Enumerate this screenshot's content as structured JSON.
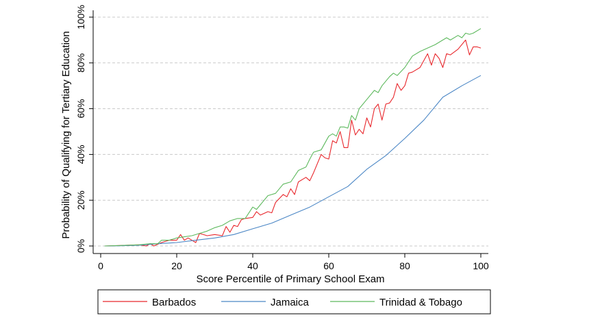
{
  "chart_data": {
    "type": "line",
    "title": "",
    "xlabel": "Score Percentile of Primary School Exam",
    "ylabel": "Probability of Qualifying for Tertiary Education",
    "xlim": [
      0,
      100
    ],
    "ylim": [
      0,
      100
    ],
    "x_ticks": [
      0,
      20,
      40,
      60,
      80,
      100
    ],
    "y_ticks": [
      0,
      20,
      40,
      60,
      80,
      100
    ],
    "y_tick_labels": [
      "0%",
      "20%",
      "40%",
      "60%",
      "80%",
      "100%"
    ],
    "grid": "horizontal dashed",
    "legend": "bottom",
    "series": [
      {
        "name": "Barbados",
        "color": "#e8262b",
        "x": [
          1,
          5,
          10,
          12,
          13,
          14,
          16,
          18,
          20,
          21,
          22,
          23,
          24,
          25,
          26,
          28,
          30,
          32,
          33,
          34,
          35,
          36,
          37,
          38,
          40,
          41,
          42,
          44,
          45,
          46,
          48,
          49,
          50,
          51,
          52,
          54,
          55,
          56,
          58,
          59,
          60,
          61,
          62,
          63,
          64,
          65,
          66,
          67,
          68,
          69,
          70,
          71,
          72,
          73,
          74,
          75,
          76,
          77,
          78,
          79,
          80,
          81,
          82,
          84,
          86,
          87,
          88,
          89,
          90,
          91,
          92,
          94,
          96,
          97,
          98,
          99,
          100
        ],
        "y": [
          0,
          0.2,
          0.5,
          0,
          1,
          0,
          1.5,
          2.5,
          2.5,
          5,
          2.5,
          3.5,
          2.5,
          1.5,
          5.5,
          4.5,
          5,
          4.5,
          8.5,
          6,
          9,
          8.5,
          11.5,
          12,
          12.5,
          15,
          13.5,
          15,
          14.5,
          19,
          22.5,
          21.5,
          25,
          22.5,
          28,
          30,
          28.5,
          32,
          40,
          38.5,
          38,
          46,
          45,
          50,
          43,
          43,
          55,
          48.5,
          51,
          49,
          56,
          52,
          60,
          62,
          55,
          62,
          62.5,
          65,
          71,
          68,
          70,
          75.5,
          76,
          78,
          84,
          79,
          84,
          82,
          78,
          84,
          83.5,
          86,
          90,
          83.5,
          87,
          87,
          86.5
        ]
      },
      {
        "name": "Jamaica",
        "color": "#4a86c5",
        "x": [
          1,
          5,
          10,
          15,
          20,
          25,
          30,
          35,
          40,
          45,
          50,
          55,
          60,
          65,
          70,
          75,
          80,
          85,
          90,
          95,
          100
        ],
        "y": [
          0,
          0.1,
          0.3,
          1,
          1.5,
          2.5,
          3.5,
          5,
          7.5,
          10,
          13.5,
          17,
          21.5,
          26,
          33.5,
          39.5,
          47,
          55,
          65,
          70,
          74.5
        ]
      },
      {
        "name": "Trinidad & Tobago",
        "color": "#5cb85c",
        "x": [
          1,
          5,
          10,
          13,
          15,
          16,
          18,
          20,
          22,
          24,
          26,
          28,
          30,
          32,
          34,
          36,
          38,
          40,
          41,
          42,
          44,
          46,
          48,
          50,
          52,
          54,
          55,
          56,
          58,
          60,
          61,
          62,
          63,
          64,
          65,
          66,
          67,
          68,
          70,
          72,
          73,
          74,
          76,
          77,
          78,
          80,
          82,
          84,
          86,
          88,
          90,
          91,
          92,
          94,
          95,
          96,
          97,
          98,
          100
        ],
        "y": [
          0,
          0.2,
          0.5,
          1,
          1,
          2.5,
          2.5,
          3.5,
          4,
          4.5,
          5.5,
          6.5,
          8,
          9,
          11,
          12,
          12,
          17,
          16,
          18,
          22,
          23,
          27,
          28,
          33,
          34.5,
          38,
          41,
          42,
          48,
          49,
          48,
          52,
          52,
          51.5,
          57,
          55,
          60,
          64,
          68,
          67,
          70,
          74,
          75.5,
          74.5,
          78,
          83,
          85,
          86.5,
          88,
          90,
          91,
          90,
          92,
          91,
          93,
          92.5,
          93,
          95
        ]
      }
    ]
  }
}
